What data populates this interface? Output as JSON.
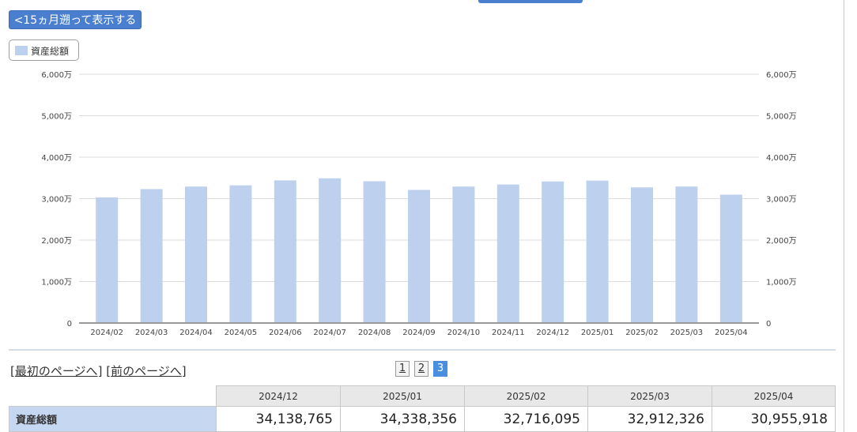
{
  "toolbar": {
    "back_label": "<15ヵ月遡って表示する"
  },
  "legend": {
    "label": "資産総額",
    "color": "#bdd0ed"
  },
  "chart_data": {
    "type": "bar",
    "categories": [
      "2024/02",
      "2024/03",
      "2024/04",
      "2024/05",
      "2024/06",
      "2024/07",
      "2024/08",
      "2024/09",
      "2024/10",
      "2024/11",
      "2024/12",
      "2025/01",
      "2025/02",
      "2025/03",
      "2025/04"
    ],
    "series": [
      {
        "name": "資産総額",
        "values": [
          30.3,
          32.3,
          32.9,
          33.2,
          34.4,
          34.9,
          34.2,
          32.1,
          32.9,
          33.4,
          34.138765,
          34.338356,
          32.716095,
          32.912326,
          30.955918
        ],
        "unit": "百万"
      }
    ],
    "yticks_left": [
      "6,000万",
      "5,000万",
      "4,000万",
      "3,000万",
      "2,000万",
      "1,000万",
      "0"
    ],
    "yticks_right": [
      "6,000万",
      "5,000万",
      "4,000万",
      "3,000万",
      "2,000万",
      "1,000万",
      "0"
    ],
    "ylim": [
      0,
      60
    ],
    "grid": true,
    "bar_color": "#bdd0ed"
  },
  "nav": {
    "first_label": "最初のページへ",
    "prev_label": "前のページへ",
    "bracket_open": "[",
    "bracket_close": "]",
    "pages": [
      "1",
      "2",
      "3"
    ],
    "current_page": "3"
  },
  "table": {
    "columns": [
      "2024/12",
      "2025/01",
      "2025/02",
      "2025/03",
      "2025/04"
    ],
    "row_label": "資産総額",
    "values": [
      "34,138,765",
      "34,338,356",
      "32,716,095",
      "32,912,326",
      "30,955,918"
    ]
  }
}
